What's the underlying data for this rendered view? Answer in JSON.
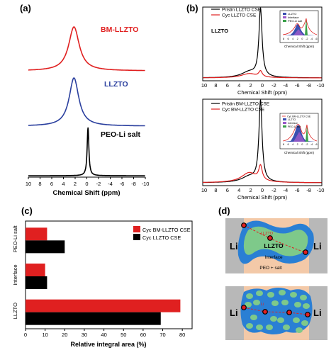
{
  "panels": {
    "a": "(a)",
    "b": "(b)",
    "c": "(c)",
    "d": "(d)"
  },
  "colors": {
    "bm": "#e02020",
    "llzto": "#2a3f9e",
    "peo": "#000000",
    "cyc_bm": "#e02020",
    "cyc_llzto": "#000000",
    "particle": "#2a7fd4",
    "polymer_light": "#f3c9a8",
    "electrode": "#b8b8b8",
    "small_particle": "#7ec98a"
  },
  "chart_data": [
    {
      "id": "a",
      "type": "line",
      "xlabel": "Chemical Shift (ppm)",
      "xlim": [
        10,
        -10
      ],
      "x_ticks": [
        "10",
        "8",
        "6",
        "4",
        "2",
        "0",
        "-2",
        "-4",
        "-6",
        "-8",
        "-10"
      ],
      "series": [
        {
          "name": "BM-LLZTO",
          "center": 2.2,
          "width": 2.2,
          "shape": "lorentzian"
        },
        {
          "name": "LLZTO",
          "center": 2.2,
          "width": 2.0,
          "shape": "lorentzian"
        },
        {
          "name": "PEO-Li salt",
          "center": -0.2,
          "width": 0.35,
          "shape": "lorentzian"
        }
      ]
    },
    {
      "id": "b_top",
      "type": "line",
      "label": "LLZTO",
      "xlabel": "Chemical Shift (ppm)",
      "xlim": [
        10,
        -10
      ],
      "x_ticks": [
        "10",
        "8",
        "6",
        "4",
        "2",
        "0",
        "-2",
        "-4",
        "-6",
        "-8",
        "-10"
      ],
      "series": [
        {
          "name": "Pristin LLZTO CSE",
          "peak": 0.3
        },
        {
          "name": "Cyc LLZTO CSE",
          "peak": 0.3
        }
      ],
      "inset": {
        "legend": [
          "LLZTO",
          "Interface",
          "PEO-Li salt"
        ],
        "xlabel": "Chemical Shift (ppm)",
        "x_ticks": [
          "8",
          "6",
          "4",
          "2",
          "0",
          "-2",
          "-4",
          "-6"
        ]
      }
    },
    {
      "id": "b_bottom",
      "type": "line",
      "xlabel": "Chemical Shift (ppm)",
      "xlim": [
        10,
        -10
      ],
      "x_ticks": [
        "10",
        "8",
        "6",
        "4",
        "2",
        "0",
        "-2",
        "-4",
        "-6",
        "-8",
        "-10"
      ],
      "series": [
        {
          "name": "Pristin BM-LLZTO CSE",
          "peak": 0.3
        },
        {
          "name": "Cyc BM-LLZTO CSE",
          "peak": 0.3
        }
      ],
      "inset": {
        "legend": [
          "Cyc BM-LLZTO CSE",
          "LLZTO",
          "Interface",
          "PEO-Li salt"
        ],
        "xlabel": "Chemical Shift (ppm)",
        "x_ticks": [
          "8",
          "6",
          "4",
          "2",
          "0",
          "-2",
          "-4",
          "-6"
        ]
      }
    },
    {
      "id": "c",
      "type": "bar",
      "orientation": "horizontal",
      "categories": [
        "PEO-Li salt",
        "Interface",
        "LLZTO"
      ],
      "series": [
        {
          "name": "Cyc BM-LLZTO CSE",
          "values": [
            11,
            10,
            79
          ]
        },
        {
          "name": "Cyc LLZTO CSE",
          "values": [
            20,
            11,
            69
          ]
        }
      ],
      "xlabel": "Relative integral area (%)",
      "xlim": [
        0,
        85
      ],
      "x_ticks": [
        "0",
        "10",
        "20",
        "30",
        "40",
        "50",
        "60",
        "70",
        "80"
      ],
      "legend_position": "top-right"
    }
  ],
  "schematic": {
    "top": {
      "left": "Li",
      "right": "Li",
      "llzto": "LLZTO",
      "interface": "Interface",
      "polymer": "PEO + salt",
      "path_label": "LLZTO"
    },
    "bottom": {
      "left": "Li",
      "right": "Li",
      "path_label": "Li"
    }
  }
}
